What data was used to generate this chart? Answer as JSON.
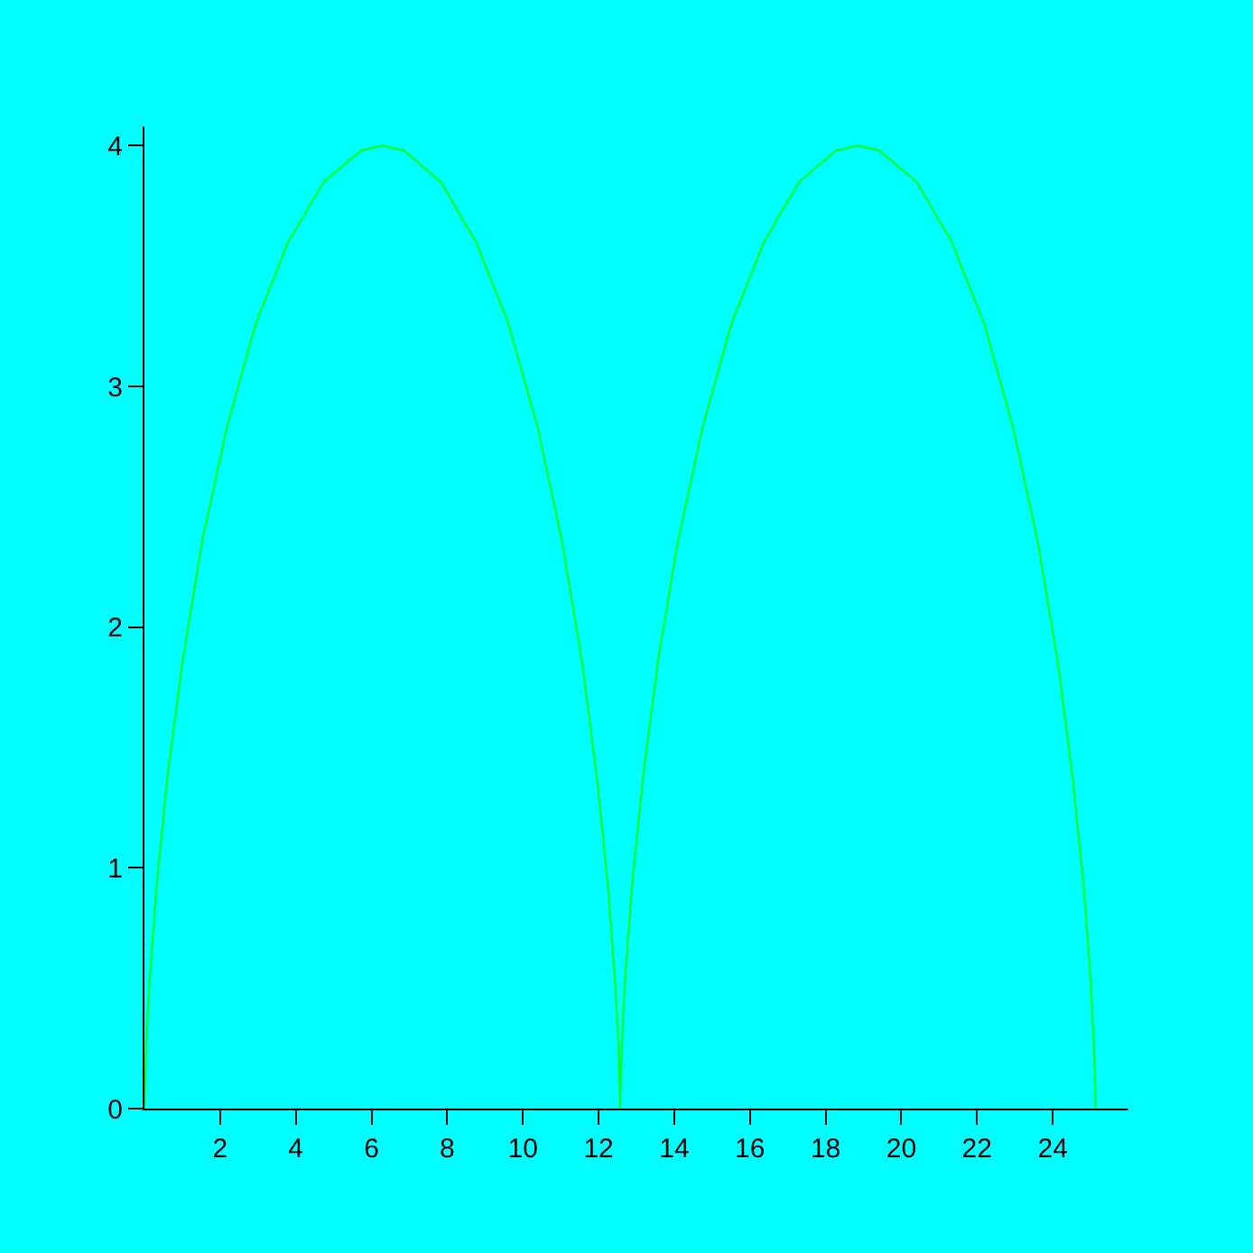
{
  "chart_data": {
    "type": "line",
    "xlim": [
      0,
      26
    ],
    "ylim": [
      0,
      4.08
    ],
    "xticks": [
      2,
      4,
      6,
      8,
      10,
      12,
      14,
      16,
      18,
      20,
      22,
      24
    ],
    "yticks": [
      0,
      1,
      2,
      3,
      4
    ],
    "marker": "none",
    "line_style": "solid",
    "series": [
      {
        "color": "#00ff00",
        "x": [
          0,
          0.01,
          0.04,
          0.14,
          0.32,
          0.6,
          1.01,
          1.53,
          2.18,
          2.94,
          3.8,
          4.74,
          5.72,
          6.28,
          6.85,
          7.83,
          8.76,
          9.62,
          10.39,
          11.03,
          11.56,
          11.96,
          12.25,
          12.43,
          12.53,
          12.56,
          12.57,
          12.57,
          12.61,
          12.7,
          12.88,
          13.17,
          13.57,
          14.1,
          14.75,
          15.51,
          16.37,
          17.3,
          18.28,
          18.85,
          19.41,
          20.4,
          21.33,
          22.19,
          22.95,
          23.6,
          24.13,
          24.53,
          24.82,
          25.0,
          25.09,
          25.13,
          25.13
        ],
        "values": [
          0,
          0.06,
          0.25,
          0.54,
          0.92,
          1.37,
          1.86,
          2.36,
          2.83,
          3.26,
          3.6,
          3.85,
          3.98,
          4,
          3.98,
          3.85,
          3.6,
          3.26,
          2.83,
          2.36,
          1.86,
          1.37,
          0.92,
          0.54,
          0.25,
          0.06,
          0,
          0.06,
          0.25,
          0.54,
          0.92,
          1.37,
          1.86,
          2.36,
          2.83,
          3.26,
          3.6,
          3.85,
          3.98,
          4,
          3.98,
          3.85,
          3.6,
          3.26,
          2.83,
          2.36,
          1.86,
          1.37,
          0.92,
          0.54,
          0.25,
          0.06,
          0
        ]
      }
    ]
  }
}
